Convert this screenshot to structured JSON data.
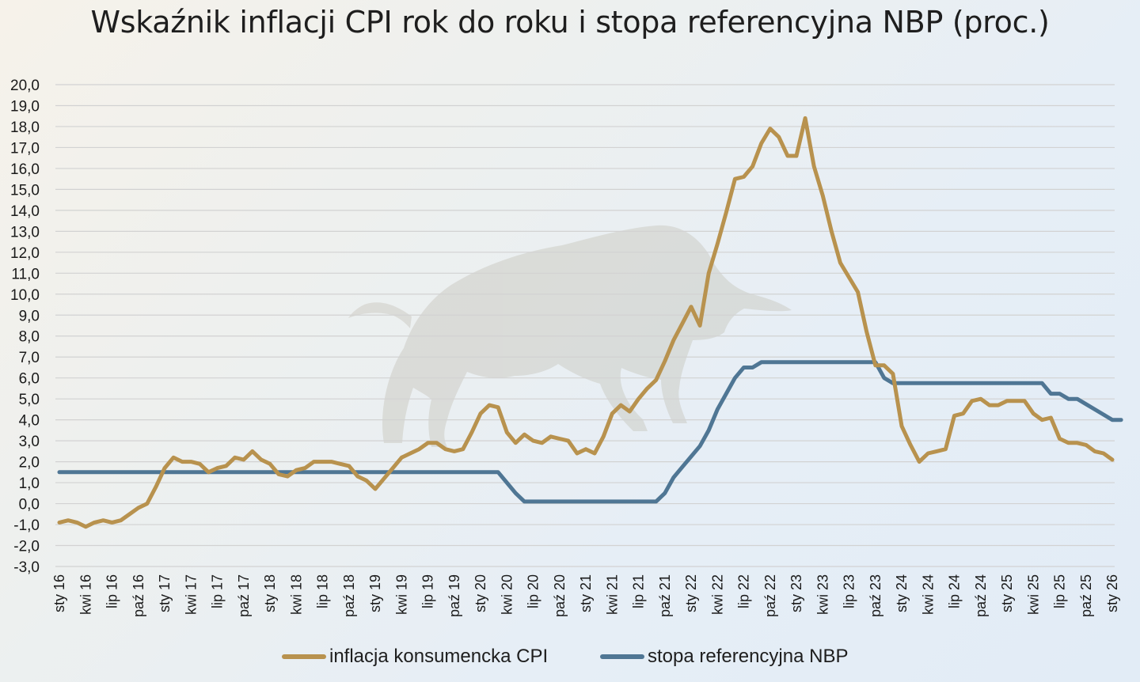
{
  "chart_data": {
    "type": "line",
    "title": "Wskaźnik inflacji CPI rok do roku i stopa referencyjna NBP (proc.)",
    "ylim": [
      -3,
      20
    ],
    "yticks": [
      "20,0",
      "19,0",
      "18,0",
      "17,0",
      "16,0",
      "15,0",
      "14,0",
      "13,0",
      "12,0",
      "11,0",
      "10,0",
      "9,0",
      "8,0",
      "7,0",
      "6,0",
      "5,0",
      "4,0",
      "3,0",
      "2,0",
      "1,0",
      "0,0",
      "-1,0",
      "-2,0",
      "-3,0"
    ],
    "xticks": [
      "sty 16",
      "kwi 16",
      "lip 16",
      "paź 16",
      "sty 17",
      "kwi 17",
      "lip 17",
      "paź 17",
      "sty 18",
      "kwi 18",
      "lip 18",
      "paź 18",
      "sty 19",
      "kwi 19",
      "lip 19",
      "paź 19",
      "sty 20",
      "kwi 20",
      "lip 20",
      "paź 20",
      "sty 21",
      "kwi 21",
      "lip 21",
      "paź 21",
      "sty 22",
      "kwi 22",
      "lip 22",
      "paź 22",
      "sty 23",
      "kwi 23",
      "lip 23",
      "paź 23",
      "sty 24",
      "kwi 24",
      "lip 24",
      "paź 24",
      "sty 25",
      "kwi 25",
      "lip 25",
      "paź 25",
      "sty 26"
    ],
    "grid": true,
    "legend_position": "bottom",
    "series": [
      {
        "name": "inflacja konsumencka CPI",
        "color": "#b8924e",
        "values": [
          -0.9,
          -0.8,
          -0.9,
          -1.1,
          -0.9,
          -0.8,
          -0.9,
          -0.8,
          -0.5,
          -0.2,
          0.0,
          0.8,
          1.7,
          2.2,
          2.0,
          2.0,
          1.9,
          1.5,
          1.7,
          1.8,
          2.2,
          2.1,
          2.5,
          2.1,
          1.9,
          1.4,
          1.3,
          1.6,
          1.7,
          2.0,
          2.0,
          2.0,
          1.9,
          1.8,
          1.3,
          1.1,
          0.7,
          1.2,
          1.7,
          2.2,
          2.4,
          2.6,
          2.9,
          2.9,
          2.6,
          2.5,
          2.6,
          3.4,
          4.3,
          4.7,
          4.6,
          3.4,
          2.9,
          3.3,
          3.0,
          2.9,
          3.2,
          3.1,
          3.0,
          2.4,
          2.6,
          2.4,
          3.2,
          4.3,
          4.7,
          4.4,
          5.0,
          5.5,
          5.9,
          6.8,
          7.8,
          8.6,
          9.4,
          8.5,
          11.0,
          12.4,
          13.9,
          15.5,
          15.6,
          16.1,
          17.2,
          17.9,
          17.5,
          16.6,
          16.6,
          18.4,
          16.1,
          14.7,
          13.0,
          11.5,
          10.8,
          10.1,
          8.2,
          6.6,
          6.6,
          6.2,
          3.7,
          2.8,
          2.0,
          2.4,
          2.5,
          2.6,
          4.2,
          4.3,
          4.9,
          5.0,
          4.7,
          4.7,
          4.9,
          4.9,
          4.9,
          4.3,
          4.0,
          4.1,
          3.1,
          2.9,
          2.9,
          2.8,
          2.5,
          2.4,
          2.1
        ]
      },
      {
        "name": "stopa referencyjna NBP",
        "color": "#4f7694",
        "values": [
          1.5,
          1.5,
          1.5,
          1.5,
          1.5,
          1.5,
          1.5,
          1.5,
          1.5,
          1.5,
          1.5,
          1.5,
          1.5,
          1.5,
          1.5,
          1.5,
          1.5,
          1.5,
          1.5,
          1.5,
          1.5,
          1.5,
          1.5,
          1.5,
          1.5,
          1.5,
          1.5,
          1.5,
          1.5,
          1.5,
          1.5,
          1.5,
          1.5,
          1.5,
          1.5,
          1.5,
          1.5,
          1.5,
          1.5,
          1.5,
          1.5,
          1.5,
          1.5,
          1.5,
          1.5,
          1.5,
          1.5,
          1.5,
          1.5,
          1.5,
          1.5,
          1.0,
          0.5,
          0.1,
          0.1,
          0.1,
          0.1,
          0.1,
          0.1,
          0.1,
          0.1,
          0.1,
          0.1,
          0.1,
          0.1,
          0.1,
          0.1,
          0.1,
          0.1,
          0.5,
          1.25,
          1.75,
          2.25,
          2.75,
          3.5,
          4.5,
          5.25,
          6.0,
          6.5,
          6.5,
          6.75,
          6.75,
          6.75,
          6.75,
          6.75,
          6.75,
          6.75,
          6.75,
          6.75,
          6.75,
          6.75,
          6.75,
          6.75,
          6.75,
          6.0,
          5.75,
          5.75,
          5.75,
          5.75,
          5.75,
          5.75,
          5.75,
          5.75,
          5.75,
          5.75,
          5.75,
          5.75,
          5.75,
          5.75,
          5.75,
          5.75,
          5.75,
          5.75,
          5.25,
          5.25,
          5.0,
          5.0,
          4.75,
          4.5,
          4.25,
          4.0,
          4.0
        ]
      }
    ]
  }
}
